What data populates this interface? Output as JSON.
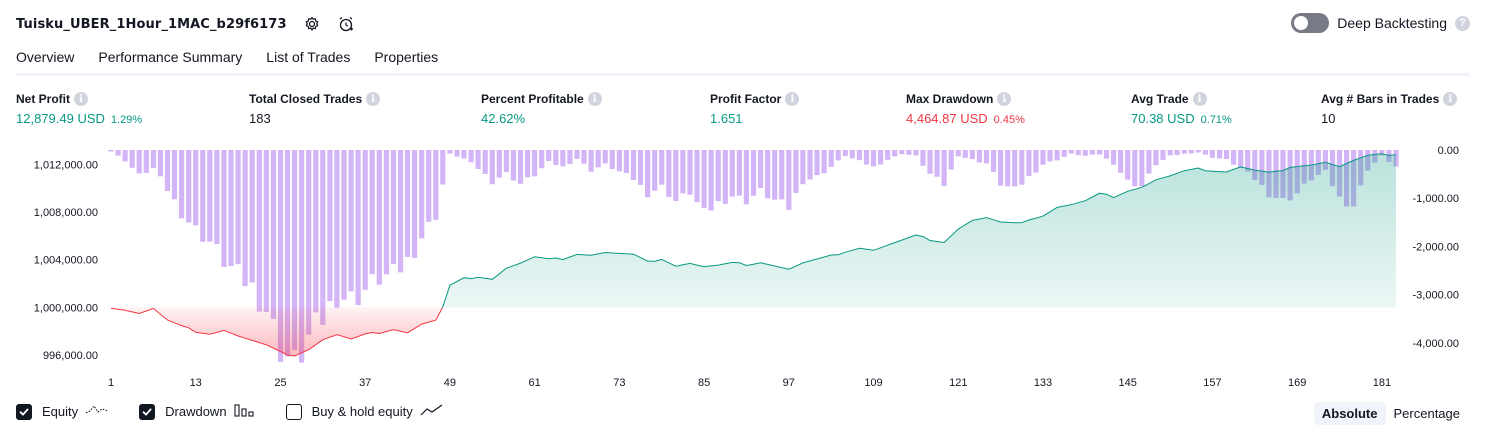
{
  "header": {
    "strategy_name": "Tuisku_UBER_1Hour_1MAC_b29f6173",
    "settings_icon": "gear-icon",
    "alert_icon": "alarm-plus-icon",
    "deep_backtesting_label": "Deep Backtesting",
    "deep_backtesting_enabled": false,
    "help_icon_glyph": "?"
  },
  "tabs": [
    {
      "label": "Overview",
      "active": true
    },
    {
      "label": "Performance Summary",
      "active": false
    },
    {
      "label": "List of Trades",
      "active": false
    },
    {
      "label": "Properties",
      "active": false
    }
  ],
  "metrics": [
    {
      "label": "Net Profit",
      "value": "12,879.49 USD",
      "pct": "1.29%",
      "tone": "pos"
    },
    {
      "label": "Total Closed Trades",
      "value": "183",
      "pct": "",
      "tone": "neu"
    },
    {
      "label": "Percent Profitable",
      "value": "42.62%",
      "pct": "",
      "tone": "pos"
    },
    {
      "label": "Profit Factor",
      "value": "1.651",
      "pct": "",
      "tone": "pos"
    },
    {
      "label": "Max Drawdown",
      "value": "4,464.87 USD",
      "pct": "0.45%",
      "tone": "neg"
    },
    {
      "label": "Avg Trade",
      "value": "70.38 USD",
      "pct": "0.71%",
      "tone": "pos"
    },
    {
      "label": "Avg # Bars in Trades",
      "value": "10",
      "pct": "",
      "tone": "neu"
    }
  ],
  "info_glyph": "i",
  "chart_data": {
    "type": "line",
    "x_ticks": [
      1,
      13,
      25,
      37,
      49,
      61,
      73,
      85,
      97,
      109,
      121,
      133,
      145,
      157,
      169,
      181
    ],
    "left_axis": {
      "ticks": [
        "1,012,000.00",
        "1,008,000.00",
        "1,004,000.00",
        "1,000,000.00",
        "996,000.00"
      ],
      "range": [
        995000,
        1013200
      ],
      "baseline": 1000000
    },
    "right_axis": {
      "ticks": [
        "0.00",
        "-1,000.00",
        "-2,000.00",
        "-3,000.00",
        "-4,000.00"
      ],
      "range": [
        -4500,
        0
      ]
    },
    "equity_color_pos": "#089981",
    "equity_color_neg": "#f23645",
    "drawdown_color": "#c49bf3",
    "equity_keypoints": [
      [
        1,
        1000000
      ],
      [
        3,
        999800
      ],
      [
        5,
        999500
      ],
      [
        7,
        999900
      ],
      [
        9,
        998900
      ],
      [
        11,
        998400
      ],
      [
        13,
        998000
      ],
      [
        15,
        997800
      ],
      [
        17,
        998100
      ],
      [
        19,
        997600
      ],
      [
        21,
        997200
      ],
      [
        23,
        996800
      ],
      [
        25,
        996200
      ],
      [
        27,
        996000
      ],
      [
        29,
        996500
      ],
      [
        31,
        997300
      ],
      [
        33,
        997700
      ],
      [
        35,
        997300
      ],
      [
        37,
        997700
      ],
      [
        39,
        997900
      ],
      [
        41,
        998200
      ],
      [
        43,
        997900
      ],
      [
        45,
        998600
      ],
      [
        47,
        998900
      ],
      [
        48,
        1000000
      ],
      [
        49,
        1001800
      ],
      [
        51,
        1002400
      ],
      [
        53,
        1002600
      ],
      [
        55,
        1002400
      ],
      [
        57,
        1003300
      ],
      [
        59,
        1003700
      ],
      [
        61,
        1004200
      ],
      [
        63,
        1004000
      ],
      [
        65,
        1004100
      ],
      [
        67,
        1004500
      ],
      [
        69,
        1004400
      ],
      [
        71,
        1004600
      ],
      [
        73,
        1004500
      ],
      [
        75,
        1004400
      ],
      [
        77,
        1003800
      ],
      [
        79,
        1004100
      ],
      [
        81,
        1003500
      ],
      [
        83,
        1003700
      ],
      [
        85,
        1003400
      ],
      [
        87,
        1003500
      ],
      [
        89,
        1003700
      ],
      [
        91,
        1003600
      ],
      [
        93,
        1003800
      ],
      [
        95,
        1003500
      ],
      [
        97,
        1003200
      ],
      [
        99,
        1003700
      ],
      [
        101,
        1004000
      ],
      [
        103,
        1004300
      ],
      [
        105,
        1004700
      ],
      [
        107,
        1005000
      ],
      [
        109,
        1004800
      ],
      [
        111,
        1005200
      ],
      [
        113,
        1005600
      ],
      [
        115,
        1006000
      ],
      [
        117,
        1005700
      ],
      [
        119,
        1005500
      ],
      [
        121,
        1006600
      ],
      [
        123,
        1007300
      ],
      [
        125,
        1007500
      ],
      [
        127,
        1007100
      ],
      [
        129,
        1007000
      ],
      [
        131,
        1007400
      ],
      [
        133,
        1007700
      ],
      [
        135,
        1008400
      ],
      [
        137,
        1008600
      ],
      [
        139,
        1008900
      ],
      [
        141,
        1009500
      ],
      [
        143,
        1009300
      ],
      [
        145,
        1009800
      ],
      [
        147,
        1010100
      ],
      [
        149,
        1010700
      ],
      [
        151,
        1011000
      ],
      [
        153,
        1011400
      ],
      [
        155,
        1011600
      ],
      [
        157,
        1011500
      ],
      [
        159,
        1011400
      ],
      [
        161,
        1011800
      ],
      [
        163,
        1011500
      ],
      [
        165,
        1011300
      ],
      [
        167,
        1011400
      ],
      [
        169,
        1011900
      ],
      [
        171,
        1012000
      ],
      [
        173,
        1012200
      ],
      [
        175,
        1011800
      ],
      [
        177,
        1012300
      ],
      [
        179,
        1012700
      ],
      [
        181,
        1012800
      ],
      [
        183,
        1012880
      ]
    ],
    "drawdown_keypoints": [
      [
        1,
        -30
      ],
      [
        3,
        -220
      ],
      [
        5,
        -520
      ],
      [
        7,
        -380
      ],
      [
        9,
        -820
      ],
      [
        11,
        -1300
      ],
      [
        13,
        -1650
      ],
      [
        15,
        -1900
      ],
      [
        17,
        -2300
      ],
      [
        19,
        -2600
      ],
      [
        21,
        -2850
      ],
      [
        23,
        -3300
      ],
      [
        25,
        -4100
      ],
      [
        27,
        -4465
      ],
      [
        29,
        -3900
      ],
      [
        31,
        -3500
      ],
      [
        33,
        -3000
      ],
      [
        35,
        -3100
      ],
      [
        37,
        -2900
      ],
      [
        39,
        -2650
      ],
      [
        41,
        -2600
      ],
      [
        43,
        -2300
      ],
      [
        45,
        -1800
      ],
      [
        47,
        -1350
      ],
      [
        49,
        -80
      ],
      [
        51,
        -180
      ],
      [
        53,
        -380
      ],
      [
        55,
        -650
      ],
      [
        57,
        -480
      ],
      [
        59,
        -700
      ],
      [
        61,
        -520
      ],
      [
        63,
        -250
      ],
      [
        65,
        -350
      ],
      [
        67,
        -180
      ],
      [
        69,
        -420
      ],
      [
        71,
        -300
      ],
      [
        73,
        -450
      ],
      [
        75,
        -600
      ],
      [
        77,
        -900
      ],
      [
        79,
        -760
      ],
      [
        81,
        -1060
      ],
      [
        83,
        -880
      ],
      [
        85,
        -1320
      ],
      [
        87,
        -1100
      ],
      [
        89,
        -950
      ],
      [
        91,
        -1050
      ],
      [
        93,
        -850
      ],
      [
        95,
        -1050
      ],
      [
        97,
        -1200
      ],
      [
        99,
        -650
      ],
      [
        101,
        -550
      ],
      [
        103,
        -350
      ],
      [
        105,
        -120
      ],
      [
        107,
        -230
      ],
      [
        109,
        -350
      ],
      [
        111,
        -200
      ],
      [
        113,
        -80
      ],
      [
        115,
        -120
      ],
      [
        117,
        -500
      ],
      [
        119,
        -720
      ],
      [
        121,
        -120
      ],
      [
        123,
        -200
      ],
      [
        125,
        -280
      ],
      [
        127,
        -700
      ],
      [
        129,
        -830
      ],
      [
        131,
        -560
      ],
      [
        133,
        -300
      ],
      [
        135,
        -200
      ],
      [
        137,
        -80
      ],
      [
        139,
        -120
      ],
      [
        141,
        -90
      ],
      [
        143,
        -280
      ],
      [
        145,
        -650
      ],
      [
        147,
        -750
      ],
      [
        149,
        -300
      ],
      [
        151,
        -120
      ],
      [
        153,
        -80
      ],
      [
        155,
        -50
      ],
      [
        157,
        -150
      ],
      [
        159,
        -200
      ],
      [
        161,
        -380
      ],
      [
        163,
        -600
      ],
      [
        165,
        -900
      ],
      [
        167,
        -1050
      ],
      [
        169,
        -900
      ],
      [
        171,
        -600
      ],
      [
        173,
        -450
      ],
      [
        175,
        -1000
      ],
      [
        177,
        -1150
      ],
      [
        179,
        -400
      ],
      [
        181,
        -120
      ],
      [
        183,
        -350
      ]
    ]
  },
  "legend": [
    {
      "label": "Equity",
      "checked": true,
      "icon": "equity-line-icon"
    },
    {
      "label": "Drawdown",
      "checked": true,
      "icon": "drawdown-bars-icon"
    },
    {
      "label": "Buy & hold equity",
      "checked": false,
      "icon": "buy-hold-line-icon"
    }
  ],
  "units": {
    "absolute_label": "Absolute",
    "percentage_label": "Percentage",
    "selected": "Absolute"
  }
}
